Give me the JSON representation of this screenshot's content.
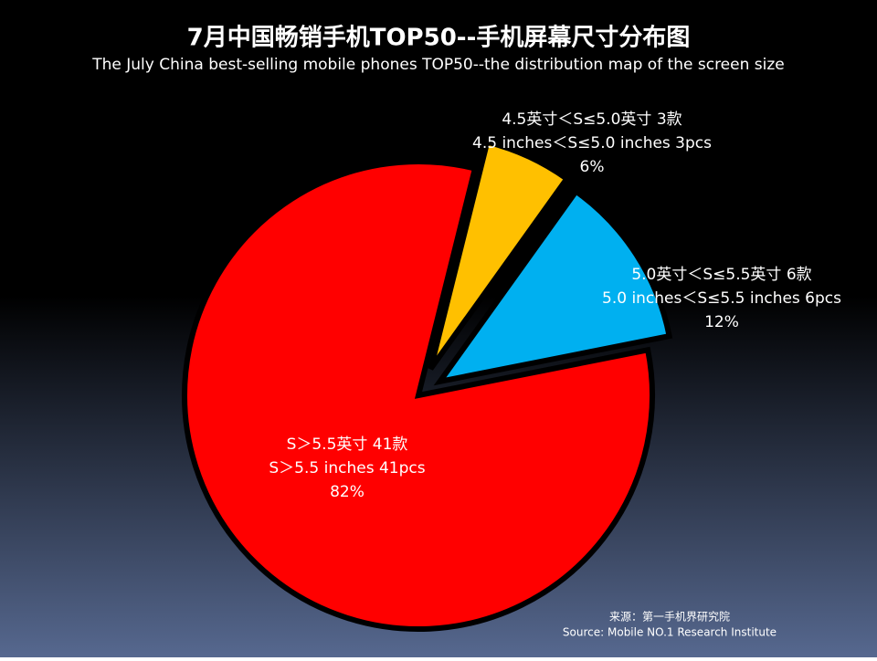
{
  "chart_data": {
    "type": "pie",
    "title": "7月中国畅销手机TOP50--手机屏幕尺寸分布图",
    "subtitle": "The July China best-selling mobile phones TOP50--the distribution map of the screen size",
    "categories": [
      "4.5英寸＜S≤5.0英寸 3款",
      "5.0英寸＜S≤5.5英寸 6款",
      "S＞5.5英寸 41款"
    ],
    "categories_en": [
      "4.5 inches＜S≤5.0 inches 3pcs",
      "5.0 inches＜S≤5.5 inches 6pcs",
      "S＞5.5 inches 41pcs"
    ],
    "values": [
      6,
      12,
      82
    ],
    "value_labels": [
      "6%",
      "12%",
      "82%"
    ],
    "colors": [
      "#ffc000",
      "#00b0f0",
      "#ff0000"
    ],
    "source": [
      "来源：第一手机界研究院",
      "Source: Mobile NO.1 Research Institute"
    ]
  }
}
